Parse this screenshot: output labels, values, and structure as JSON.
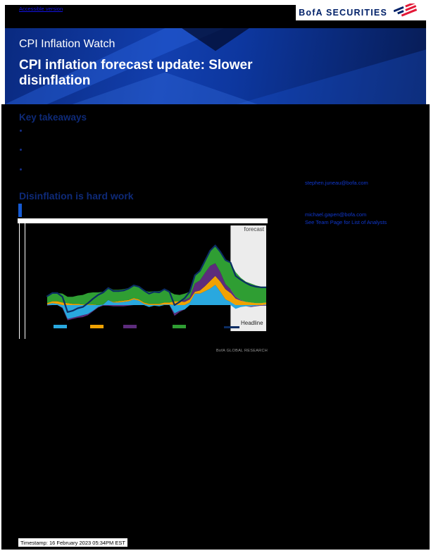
{
  "header": {
    "accessible_link": "Accessible version",
    "brand": "BofA SECURITIES"
  },
  "banner": {
    "eyebrow": "CPI Inflation Watch",
    "title": "CPI inflation forecast update: Slower disinflation"
  },
  "body": {
    "key_takeaways_heading": "Key takeaways",
    "section_heading": "Disinflation is hard work"
  },
  "contacts": {
    "email_primary": "stephen.juneau@bofa.com",
    "email_secondary": "michael.gapen@bofa.com",
    "team_link": "See Team Page for List of Analysts"
  },
  "footer": {
    "timestamp": "Timestamp: 16 February 2023 05:34PM EST"
  },
  "colors": {
    "brand_navy": "#012169",
    "brand_red": "#e31837",
    "banner_blue": "#0d379f",
    "link_blue": "#1038cf",
    "forecast_bg": "#ececec"
  },
  "chart_data": {
    "type": "area",
    "stacked": true,
    "x_start": 2014.0,
    "x_step": 0.25,
    "x_end": 2024.75,
    "ylim": [
      -4,
      10
    ],
    "grid": false,
    "legend_position": "bottom",
    "source": "BofA GLOBAL RESEARCH",
    "forecast_region": {
      "label": "forecast",
      "start_index": 36
    },
    "series": [
      {
        "name": "blue-series",
        "legend_label": "",
        "color": "#29a8df",
        "values": [
          0.1,
          0.3,
          0.2,
          -0.4,
          -2.2,
          -2.0,
          -1.8,
          -1.6,
          -1.4,
          -0.9,
          -0.3,
          0.1,
          0.8,
          0.4,
          0.4,
          0.5,
          0.6,
          0.9,
          0.7,
          0.2,
          -0.3,
          -0.1,
          -0.2,
          0.1,
          0.1,
          -1.3,
          -0.9,
          -0.7,
          0.4,
          1.8,
          1.8,
          2.2,
          2.6,
          3.2,
          2.1,
          0.9,
          0.5,
          -0.6,
          -0.3,
          -0.2,
          -0.2,
          -0.1,
          0.0,
          0.1
        ]
      },
      {
        "name": "orange-series",
        "legend_label": "",
        "color": "#f0a202",
        "values": [
          0.2,
          0.3,
          0.4,
          0.4,
          0.3,
          0.2,
          0.2,
          0.1,
          0.1,
          0.1,
          0.0,
          0.0,
          0.0,
          0.1,
          0.2,
          0.2,
          0.2,
          0.2,
          0.2,
          0.2,
          0.2,
          0.2,
          0.2,
          0.3,
          0.3,
          0.6,
          0.6,
          0.5,
          0.5,
          0.3,
          0.5,
          0.8,
          1.2,
          1.4,
          1.6,
          1.6,
          1.4,
          1.0,
          0.7,
          0.5,
          0.4,
          0.3,
          0.3,
          0.3
        ]
      },
      {
        "name": "purple-series",
        "legend_label": "",
        "color": "#5d2c7c",
        "values": [
          -0.1,
          0.0,
          0.0,
          -0.1,
          -0.2,
          -0.2,
          -0.2,
          -0.3,
          -0.2,
          -0.1,
          -0.1,
          -0.1,
          -0.1,
          -0.2,
          -0.2,
          -0.2,
          -0.1,
          0.0,
          0.0,
          0.0,
          0.0,
          0.0,
          0.0,
          0.0,
          0.0,
          -0.4,
          -0.2,
          0.3,
          0.3,
          1.3,
          1.6,
          2.1,
          2.4,
          2.0,
          1.5,
          0.8,
          0.6,
          0.3,
          0.1,
          0.0,
          -0.1,
          -0.1,
          -0.1,
          -0.1
        ]
      },
      {
        "name": "green-series",
        "legend_label": "",
        "color": "#2f9e33",
        "values": [
          1.2,
          1.3,
          1.3,
          1.4,
          1.0,
          1.1,
          1.3,
          1.5,
          1.8,
          1.9,
          2.0,
          2.0,
          2.0,
          1.9,
          1.8,
          1.8,
          1.9,
          2.0,
          2.0,
          1.9,
          1.9,
          2.0,
          2.0,
          2.1,
          1.7,
          1.1,
          1.0,
          1.0,
          0.9,
          1.3,
          1.5,
          1.9,
          2.4,
          2.8,
          3.2,
          3.8,
          4.2,
          3.9,
          3.5,
          3.2,
          3.0,
          2.8,
          2.6,
          2.5
        ]
      }
    ],
    "line": {
      "name": "headline",
      "label": "Headline",
      "color": "#0b2d64",
      "values": [
        1.4,
        1.9,
        1.9,
        1.3,
        -1.1,
        -0.9,
        -0.5,
        -0.3,
        0.3,
        1.0,
        1.6,
        2.0,
        2.7,
        2.2,
        2.2,
        2.3,
        2.6,
        3.1,
        2.9,
        2.3,
        1.8,
        2.1,
        2.0,
        2.5,
        2.1,
        0.0,
        0.5,
        1.1,
        2.1,
        4.7,
        5.4,
        7.0,
        8.6,
        9.4,
        8.4,
        7.1,
        6.7,
        4.6,
        4.0,
        3.5,
        3.1,
        2.9,
        2.8,
        2.8
      ]
    }
  }
}
